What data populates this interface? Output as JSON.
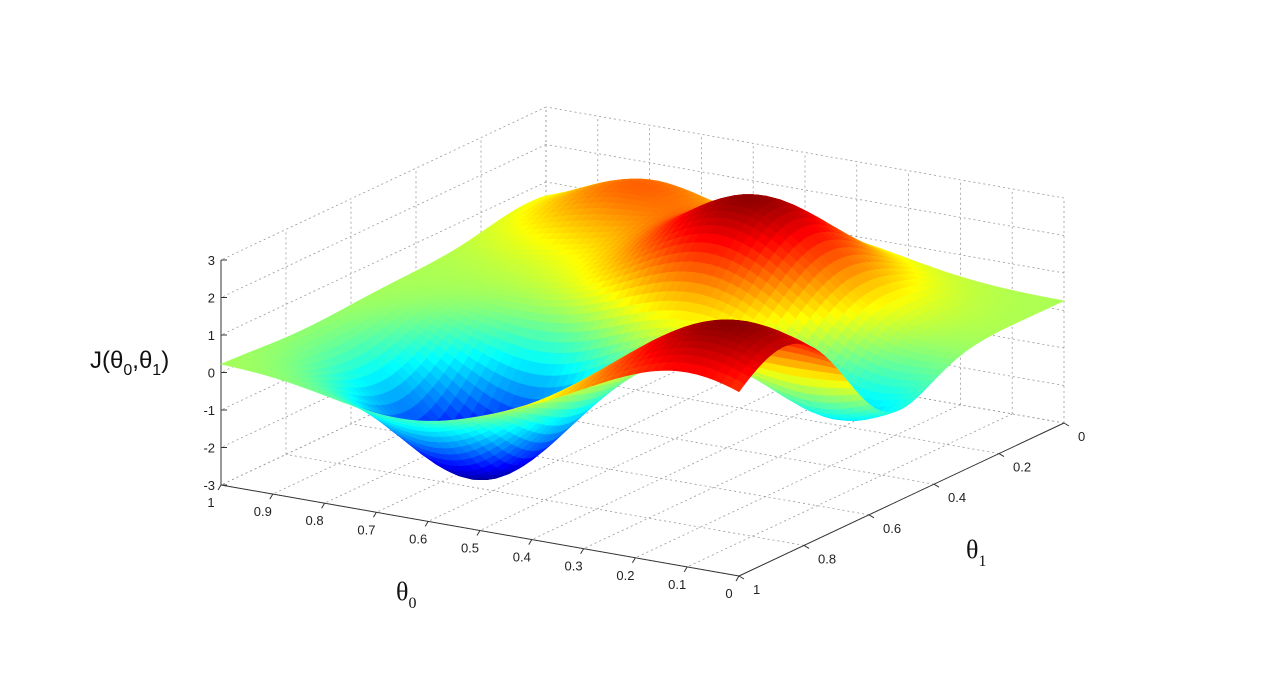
{
  "chart_data": {
    "type": "surface",
    "zlabel_parts": [
      "J(",
      "θ",
      "0",
      ",",
      "θ",
      "1",
      ")"
    ],
    "xlabel_parts": [
      "θ",
      "0"
    ],
    "ylabel_parts": [
      "θ",
      "1"
    ],
    "x_ticks": [
      "1",
      "0.9",
      "0.8",
      "0.7",
      "0.6",
      "0.5",
      "0.4",
      "0.3",
      "0.2",
      "0.1",
      "0"
    ],
    "y_ticks": [
      "0",
      "0.2",
      "0.4",
      "0.6",
      "0.8",
      "1"
    ],
    "z_ticks": [
      "3",
      "2",
      "1",
      "0",
      "-1",
      "-2",
      "-3"
    ],
    "xlim": [
      0,
      1
    ],
    "ylim": [
      0,
      1
    ],
    "zlim": [
      -3,
      3
    ],
    "grid": true,
    "colormap": "jet",
    "peaks": [
      {
        "theta0": 0.45,
        "theta1": 0.25,
        "J": 2.9
      },
      {
        "theta0": 0.1,
        "theta1": 0.85,
        "J": 3.0
      },
      {
        "theta0": 0.8,
        "theta1": 0.05,
        "J": 1.6
      }
    ],
    "valleys": [
      {
        "theta0": 0.65,
        "theta1": 0.75,
        "J": -3.0
      },
      {
        "theta0": 0.1,
        "theta1": 0.55,
        "J": -1.6
      }
    ]
  }
}
